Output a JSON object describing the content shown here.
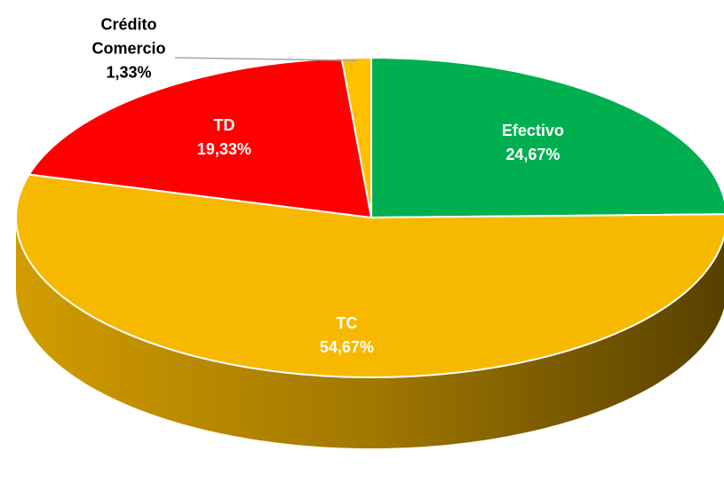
{
  "chart_data": {
    "type": "pie",
    "categories": [
      "Efectivo",
      "TC",
      "TD",
      "Crédito Comercio"
    ],
    "values": [
      24.67,
      54.67,
      19.33,
      1.33
    ],
    "value_labels": [
      "24,67%",
      "54,67%",
      "19,33%",
      "1,33%"
    ],
    "colors": [
      "#00b050",
      "#f7b800",
      "#ff0000",
      "#ffc000"
    ]
  }
}
